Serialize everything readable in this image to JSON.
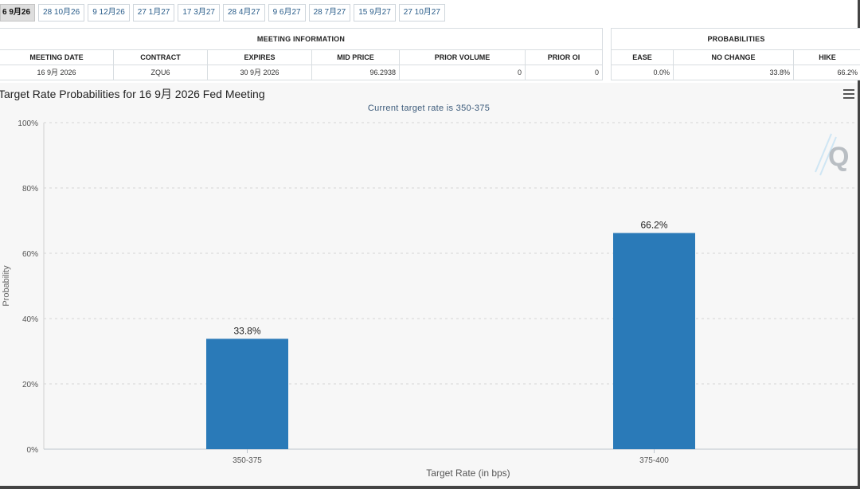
{
  "tabs": [
    "6 9月26",
    "28 10月26",
    "9 12月26",
    "27 1月27",
    "17 3月27",
    "28 4月27",
    "9 6月27",
    "28 7月27",
    "15 9月27",
    "27 10月27"
  ],
  "active_tab": 0,
  "meeting_info": {
    "title": "MEETING INFORMATION",
    "headers": [
      "MEETING DATE",
      "CONTRACT",
      "EXPIRES",
      "MID PRICE",
      "PRIOR VOLUME",
      "PRIOR OI"
    ],
    "values": [
      "16 9月 2026",
      "ZQU6",
      "30 9月 2026",
      "96.2938",
      "0",
      "0"
    ]
  },
  "probabilities": {
    "title": "PROBABILITIES",
    "headers": [
      "EASE",
      "NO CHANGE",
      "HIKE"
    ],
    "values": [
      "0.0%",
      "33.8%",
      "66.2%"
    ]
  },
  "colors": {
    "bar": "#2a7ab8",
    "tab_link": "#2a5d8a",
    "subtitle": "#3b5a7a",
    "plot_bg": "#f7f7f7"
  },
  "icons": {
    "menu": "hamburger-menu-icon",
    "logo": "q-logo-icon"
  },
  "chart_data": {
    "type": "bar",
    "title": "Target Rate Probabilities for 16 9月 2026 Fed Meeting",
    "subtitle": "Current target rate is 350-375",
    "xlabel": "Target Rate (in bps)",
    "ylabel": "Probability",
    "categories": [
      "350-375",
      "375-400"
    ],
    "values": [
      33.8,
      66.2
    ],
    "data_labels": [
      "33.8%",
      "66.2%"
    ],
    "ylim": [
      0,
      100
    ],
    "yticks": [
      0,
      20,
      40,
      60,
      80,
      100
    ],
    "ytick_labels": [
      "0%",
      "20%",
      "40%",
      "60%",
      "80%",
      "100%"
    ],
    "grid": true,
    "legend": "none"
  }
}
